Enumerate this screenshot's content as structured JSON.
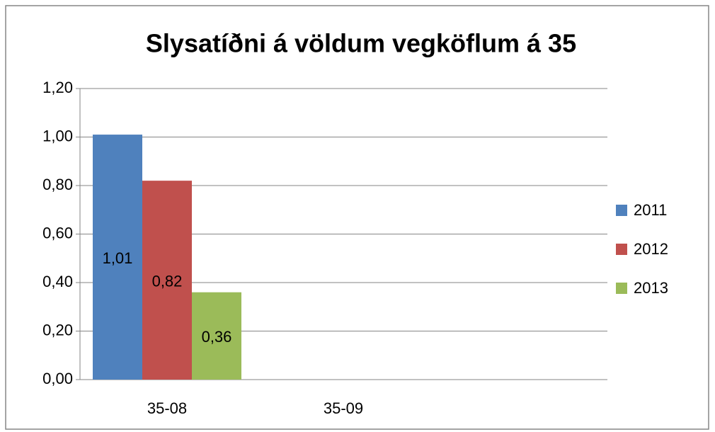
{
  "chart_data": {
    "type": "bar",
    "title": "Slysatíðni á völdum vegköflum á 35",
    "categories": [
      "35-08",
      "35-09"
    ],
    "series": [
      {
        "name": "2011",
        "color": "#4f81bd",
        "values": [
          1.01,
          null
        ],
        "value_labels": [
          "1,01",
          null
        ]
      },
      {
        "name": "2012",
        "color": "#c0504d",
        "values": [
          0.82,
          null
        ],
        "value_labels": [
          "0,82",
          null
        ]
      },
      {
        "name": "2013",
        "color": "#9bbb59",
        "values": [
          0.36,
          null
        ],
        "value_labels": [
          "0,36",
          null
        ]
      }
    ],
    "ylim": [
      0,
      1.2
    ],
    "yticks": [
      {
        "value": 0,
        "label": "0,00"
      },
      {
        "value": 0.2,
        "label": "0,20"
      },
      {
        "value": 0.4,
        "label": "0,40"
      },
      {
        "value": 0.6,
        "label": "0,60"
      },
      {
        "value": 0.8,
        "label": "0,80"
      },
      {
        "value": 1.0,
        "label": "1,00"
      },
      {
        "value": 1.2,
        "label": "1,20"
      }
    ],
    "grid": true,
    "legend": "right"
  }
}
